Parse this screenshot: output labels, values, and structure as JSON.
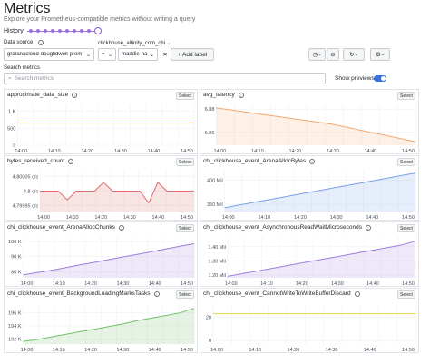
{
  "page": {
    "title": "Metrics",
    "subtitle": "Explore your Prometheus-compatible metrics without writing a query",
    "history_label": "History"
  },
  "controls": {
    "datasource_label": "Data source",
    "datasource_value": "grafanacloud-dougtidwell-prom",
    "label_key_title": "clickhouse_altinity_com_chi",
    "operator": "=",
    "label_value": "maddie-na",
    "add_label": "+  Add label",
    "search_label": "Search metrics",
    "search_placeholder": "Search metrics",
    "show_previews_label": "Show previews",
    "show_previews_on": true
  },
  "panels": [
    {
      "title": "approximate_data_size",
      "select": "Select",
      "color": "#e8d246",
      "yticks": [
        "1 K",
        "500",
        "0"
      ],
      "yvals": [
        1000,
        500,
        0
      ],
      "ylim": [
        0,
        1200
      ],
      "xticks": [
        "14:00",
        "14:10",
        "14:20",
        "14:30",
        "14:40",
        "14:50"
      ],
      "series": [
        650,
        650,
        650,
        650,
        650,
        650,
        650,
        650,
        650,
        650,
        650,
        650,
        650
      ],
      "area": false
    },
    {
      "title": "avg_latency",
      "select": "Select",
      "color": "#f2aa73",
      "yticks": [
        "6.88",
        "6.86"
      ],
      "yvals": [
        6.88,
        6.86
      ],
      "ylim": [
        6.849,
        6.884
      ],
      "xticks": [
        "14:00",
        "14:10",
        "14:20",
        "14:30",
        "14:40",
        "14:50"
      ],
      "series": [
        6.881,
        6.879,
        6.877,
        6.875,
        6.873,
        6.871,
        6.869,
        6.867,
        6.864,
        6.861,
        6.858,
        6.855,
        6.852
      ],
      "area": true
    },
    {
      "title": "bytes_received_count",
      "select": "Select",
      "color": "#e06b6b",
      "yticks": [
        "4.80005 c/s",
        "4.8 c/s",
        "4.79995 c/s"
      ],
      "yvals": [
        4.80005,
        4.8,
        4.79995
      ],
      "ylim": [
        4.79993,
        4.80007
      ],
      "xticks": [
        "14:00",
        "14:10",
        "14:20",
        "14:30",
        "14:40",
        "14:50"
      ],
      "series": [
        4.8,
        4.8,
        4.8,
        4.79997,
        4.8,
        4.8,
        4.8,
        4.80003,
        4.8,
        4.8,
        4.8,
        4.8,
        4.79996,
        4.80003,
        4.8,
        4.8,
        4.8,
        4.8
      ],
      "area": true
    },
    {
      "title": "chi_clickhouse_event_ArenaAllocBytes",
      "select": "Select",
      "color": "#7aa0e8",
      "yticks": [
        "400 Mil",
        "350 Mil"
      ],
      "yvals": [
        400,
        350
      ],
      "ylim": [
        335,
        420
      ],
      "xticks": [
        "14:00",
        "14:10",
        "14:20",
        "14:30",
        "14:40",
        "14:50"
      ],
      "series": [
        343,
        349,
        355,
        361,
        367,
        373,
        379,
        385,
        391,
        397,
        403,
        409,
        415
      ],
      "area": true
    },
    {
      "title": "chi_clickhouse_event_ArenaAllocChunks",
      "select": "Select",
      "color": "#a07ddc",
      "yticks": [
        "100 K",
        "90 K",
        "80 K"
      ],
      "yvals": [
        100000,
        90000,
        80000
      ],
      "ylim": [
        76000,
        103000
      ],
      "xticks": [
        "14:00",
        "14:10",
        "14:20",
        "14:30",
        "14:40",
        "14:50"
      ],
      "series": [
        78000,
        79500,
        81000,
        82700,
        84500,
        86200,
        88000,
        89800,
        91500,
        93300,
        95000,
        96800,
        98500
      ],
      "area": true
    },
    {
      "title": "chi_clickhouse_event_AsynchronousReadWaitMicroseconds",
      "select": "Select",
      "color": "#a07ddc",
      "yticks": [
        "1.40 Mil",
        "1.30 Mil",
        "1.20 Mil"
      ],
      "yvals": [
        1.4,
        1.3,
        1.2
      ],
      "ylim": [
        1.18,
        1.47
      ],
      "xticks": [
        "14:00",
        "14:10",
        "14:20",
        "14:30",
        "14:40",
        "14:50"
      ],
      "series": [
        1.19,
        1.21,
        1.23,
        1.25,
        1.27,
        1.29,
        1.31,
        1.33,
        1.35,
        1.37,
        1.39,
        1.41,
        1.44
      ],
      "area": true
    },
    {
      "title": "chi_clickhouse_event_BackgroundLoadingMarksTasks",
      "select": "Select",
      "color": "#73bf69",
      "yticks": [
        "196 K",
        "194 K",
        "192 K"
      ],
      "yvals": [
        196000,
        194000,
        192000
      ],
      "ylim": [
        191200,
        197500
      ],
      "xticks": [
        "14:00",
        "14:10",
        "14:20",
        "14:30",
        "14:40",
        "14:50"
      ],
      "series": [
        191600,
        191900,
        192300,
        192700,
        193100,
        193500,
        193900,
        194300,
        194800,
        195200,
        195600,
        196000,
        196700
      ],
      "area": true
    },
    {
      "title": "chi_clickhouse_event_CannotWriteToWriteBufferDiscard",
      "select": "Select",
      "color": "#e8d246",
      "yticks": [
        "20",
        "0"
      ],
      "yvals": [
        20,
        0
      ],
      "ylim": [
        -3,
        32
      ],
      "xticks": [
        "14:00",
        "14:10",
        "14:20",
        "14:30",
        "14:40",
        "14:50"
      ],
      "series": [
        23,
        23,
        23,
        23,
        23,
        23,
        23,
        23,
        23,
        23,
        23,
        23,
        23
      ],
      "area": false
    }
  ]
}
